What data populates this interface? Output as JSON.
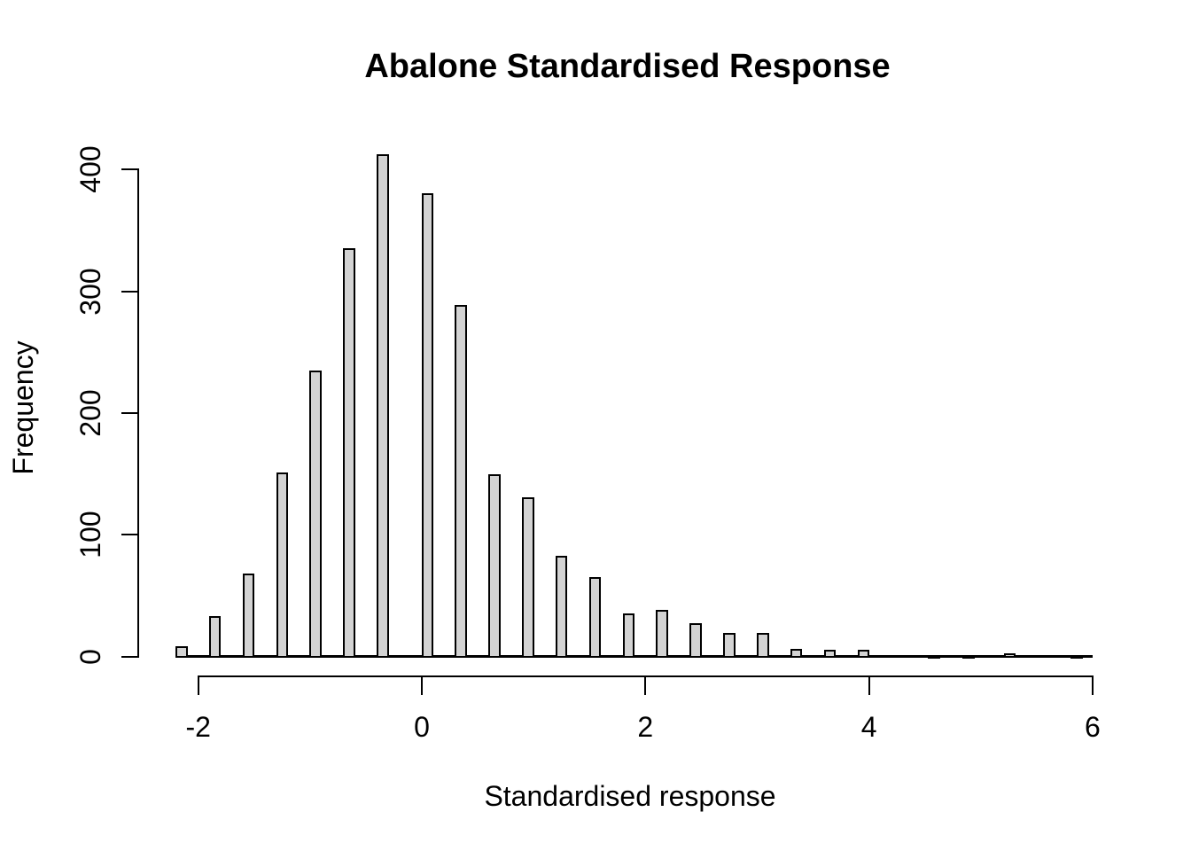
{
  "title": "Abalone Standardised Response",
  "x_axis": {
    "label": "Standardised response",
    "ticks": [
      -2,
      0,
      2,
      4,
      6
    ]
  },
  "y_axis": {
    "label": "Frequency",
    "ticks": [
      0,
      100,
      200,
      300,
      400
    ]
  },
  "colors": {
    "background": "#ffffff",
    "text": "#000000",
    "bar_fill": "#d3d3d3",
    "bar_border": "#000000",
    "axis": "#000000"
  },
  "chart_data": {
    "type": "bar",
    "title": "Abalone Standardised Response",
    "xlabel": "Standardised response",
    "ylabel": "Frequency",
    "x": [
      -2.15,
      -1.85,
      -1.55,
      -1.25,
      -0.95,
      -0.65,
      -0.35,
      0.05,
      0.35,
      0.65,
      0.95,
      1.25,
      1.55,
      1.85,
      2.15,
      2.45,
      2.75,
      3.05,
      3.35,
      3.65,
      3.95,
      4.58,
      4.89,
      5.26,
      5.86
    ],
    "values": [
      8,
      33,
      68,
      151,
      234,
      335,
      412,
      380,
      288,
      149,
      130,
      82,
      65,
      35,
      38,
      27,
      19,
      19,
      6,
      5,
      5,
      1,
      1,
      2,
      1
    ],
    "bin_width": 0.1,
    "xlim": [
      -2.2,
      6.0
    ],
    "ylim": [
      0,
      400
    ],
    "x_ticks": [
      -2,
      0,
      2,
      4,
      6
    ],
    "y_ticks": [
      0,
      100,
      200,
      300,
      400
    ],
    "grid": false,
    "legend": false
  }
}
